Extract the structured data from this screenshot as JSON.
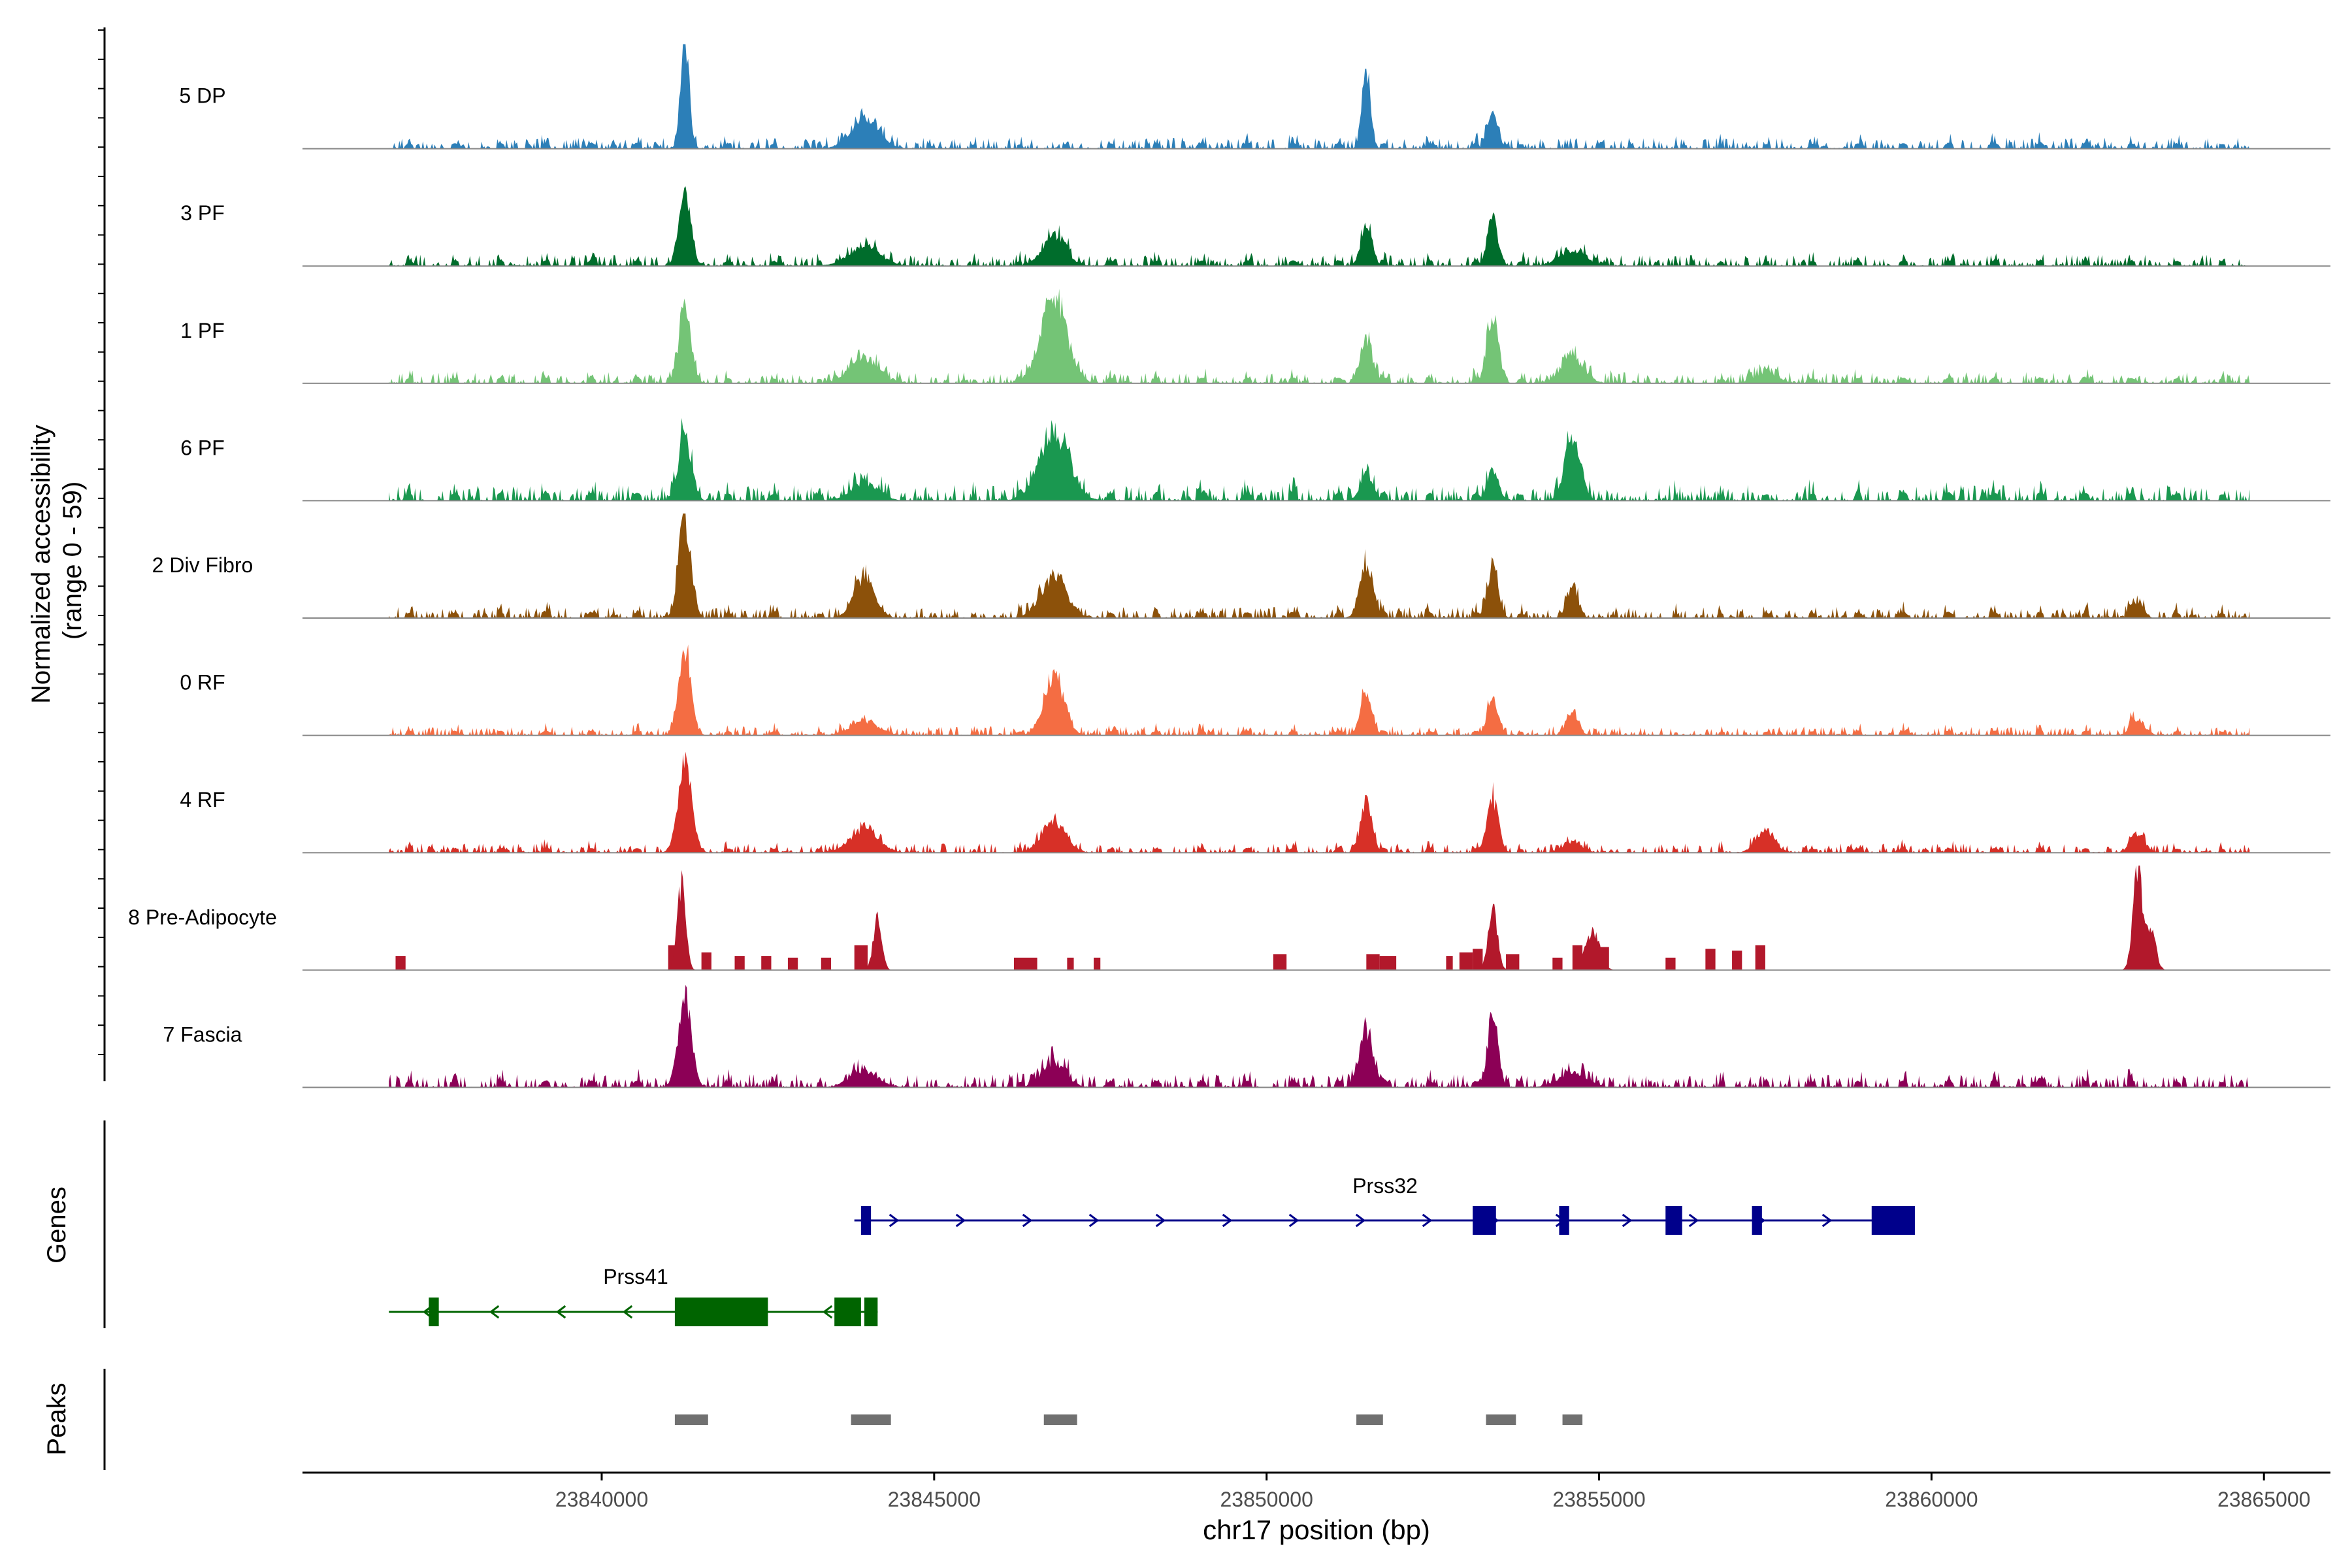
{
  "chart_data": {
    "type": "area",
    "subtype": "genome-coverage-tracks",
    "region": "chr17",
    "xlim": [
      23835500,
      23866000
    ],
    "x_ticks": [
      23840000,
      23845000,
      23850000,
      23855000,
      23860000,
      23865000
    ],
    "x_tick_labels": [
      "23840000",
      "23845000",
      "23850000",
      "23855000",
      "23860000",
      "23865000"
    ],
    "xlabel": "chr17 position (bp)",
    "ylabel_line1": "Normalized accessibility",
    "ylabel_line2": "(range 0 - 59)",
    "ylim": [
      0,
      59
    ],
    "tracks": [
      {
        "label": "5 DP",
        "color": "#2c7fb8",
        "peaks": [
          [
            23841250,
            59,
            90
          ],
          [
            23843950,
            16,
            300
          ],
          [
            23851500,
            44,
            90
          ],
          [
            23853400,
            22,
            110
          ]
        ],
        "noise": 3.2,
        "noise_start": 23836800,
        "noise_end": 23864800
      },
      {
        "label": "3 PF",
        "color": "#006d2c",
        "peaks": [
          [
            23841250,
            38,
            130
          ],
          [
            23843950,
            10,
            350
          ],
          [
            23846800,
            17,
            250
          ],
          [
            23851500,
            22,
            120
          ],
          [
            23853400,
            28,
            110
          ],
          [
            23854600,
            8,
            300
          ]
        ],
        "noise": 3.2,
        "noise_start": 23836800,
        "noise_end": 23864800
      },
      {
        "label": "1 PF",
        "color": "#74c476",
        "peaks": [
          [
            23841250,
            40,
            130
          ],
          [
            23843950,
            14,
            300
          ],
          [
            23846800,
            46,
            280
          ],
          [
            23851500,
            24,
            130
          ],
          [
            23853400,
            40,
            120
          ],
          [
            23854600,
            14,
            250
          ],
          [
            23857500,
            6,
            250
          ]
        ],
        "noise": 3.2,
        "noise_start": 23836800,
        "noise_end": 23864800
      },
      {
        "label": "6 PF",
        "color": "#1a9850",
        "peaks": [
          [
            23841250,
            36,
            140
          ],
          [
            23843950,
            10,
            300
          ],
          [
            23846800,
            38,
            320
          ],
          [
            23851500,
            16,
            130
          ],
          [
            23853400,
            18,
            120
          ],
          [
            23854600,
            34,
            170
          ]
        ],
        "noise": 4.5,
        "noise_start": 23836800,
        "noise_end": 23864800
      },
      {
        "label": "2 Div Fibro",
        "color": "#8c510a",
        "peaks": [
          [
            23841250,
            56,
            130
          ],
          [
            23843950,
            23,
            220
          ],
          [
            23846800,
            22,
            280
          ],
          [
            23851500,
            30,
            140
          ],
          [
            23853400,
            26,
            120
          ],
          [
            23854600,
            18,
            120
          ],
          [
            23863100,
            9,
            120
          ]
        ],
        "noise": 3.2,
        "noise_start": 23836800,
        "noise_end": 23864800
      },
      {
        "label": "0 RF",
        "color": "#f46d43",
        "peaks": [
          [
            23841250,
            48,
            130
          ],
          [
            23843950,
            8,
            300
          ],
          [
            23846800,
            32,
            220
          ],
          [
            23851500,
            26,
            120
          ],
          [
            23853400,
            22,
            110
          ],
          [
            23854600,
            14,
            120
          ],
          [
            23863100,
            9,
            150
          ]
        ],
        "noise": 2.6,
        "noise_start": 23836800,
        "noise_end": 23864800
      },
      {
        "label": "4 RF",
        "color": "#d73027",
        "peaks": [
          [
            23841250,
            48,
            150
          ],
          [
            23843950,
            13,
            300
          ],
          [
            23846800,
            18,
            250
          ],
          [
            23851500,
            28,
            120
          ],
          [
            23853400,
            30,
            120
          ],
          [
            23854600,
            6,
            200
          ],
          [
            23857500,
            12,
            200
          ],
          [
            23863100,
            11,
            150
          ]
        ],
        "noise": 2.6,
        "noise_start": 23836800,
        "noise_end": 23864800
      },
      {
        "label": "8 Pre-Adipocyte",
        "color": "#b2182b",
        "peaks": [
          [
            23841200,
            48,
            90
          ],
          [
            23844150,
            30,
            90
          ],
          [
            23853400,
            34,
            100
          ],
          [
            23854900,
            22,
            150
          ],
          [
            23863100,
            56,
            100
          ],
          [
            23863300,
            24,
            100
          ]
        ],
        "noise": 0,
        "noise_start": 23836800,
        "noise_end": 23864800,
        "blocks": [
          [
            23836900,
            23837050,
            8
          ],
          [
            23841000,
            23841150,
            14
          ],
          [
            23841500,
            23841650,
            10
          ],
          [
            23842000,
            23842150,
            8
          ],
          [
            23842400,
            23842550,
            8
          ],
          [
            23842800,
            23842950,
            7
          ],
          [
            23843300,
            23843450,
            7
          ],
          [
            23843800,
            23844000,
            14
          ],
          [
            23846200,
            23846550,
            7
          ],
          [
            23847000,
            23847100,
            7
          ],
          [
            23847400,
            23847500,
            7
          ],
          [
            23850100,
            23850300,
            9
          ],
          [
            23851500,
            23851700,
            9
          ],
          [
            23851700,
            23851950,
            8
          ],
          [
            23852700,
            23852800,
            8
          ],
          [
            23852900,
            23853100,
            10
          ],
          [
            23853100,
            23853250,
            12
          ],
          [
            23853600,
            23853800,
            9
          ],
          [
            23854300,
            23854450,
            7
          ],
          [
            23854600,
            23854750,
            14
          ],
          [
            23855000,
            23855150,
            13
          ],
          [
            23856000,
            23856150,
            7
          ],
          [
            23856600,
            23856750,
            12
          ],
          [
            23857000,
            23857150,
            11
          ],
          [
            23857350,
            23857500,
            14
          ]
        ]
      },
      {
        "label": "7 Fascia",
        "color": "#8c0056",
        "peaks": [
          [
            23841250,
            50,
            140
          ],
          [
            23843950,
            9,
            300
          ],
          [
            23846800,
            14,
            250
          ],
          [
            23851500,
            32,
            150
          ],
          [
            23853400,
            40,
            110
          ],
          [
            23854600,
            8,
            300
          ]
        ],
        "noise": 3.8,
        "noise_start": 23836800,
        "noise_end": 23864800
      }
    ],
    "genes_label": "Genes",
    "genes": [
      {
        "name": "Prss32",
        "color": "#00008b",
        "strand": "+",
        "start": 23843800,
        "end": 23859700,
        "exons": [
          [
            23843900,
            23844050
          ],
          [
            23853100,
            23853450
          ],
          [
            23854400,
            23854550
          ],
          [
            23856000,
            23856250
          ],
          [
            23857300,
            23857450
          ],
          [
            23859100,
            23859750
          ]
        ]
      },
      {
        "name": "Prss41",
        "color": "#006400",
        "strand": "-",
        "start": 23836800,
        "end": 23844150,
        "exons": [
          [
            23837400,
            23837550
          ],
          [
            23841100,
            23842500
          ],
          [
            23843500,
            23843900
          ],
          [
            23843950,
            23844150
          ]
        ]
      }
    ],
    "peaks_label": "Peaks",
    "peak_regions": [
      [
        23841100,
        23841600
      ],
      [
        23843750,
        23844350
      ],
      [
        23846650,
        23847150
      ],
      [
        23851350,
        23851750
      ],
      [
        23853300,
        23853750
      ],
      [
        23854450,
        23854750
      ]
    ]
  }
}
